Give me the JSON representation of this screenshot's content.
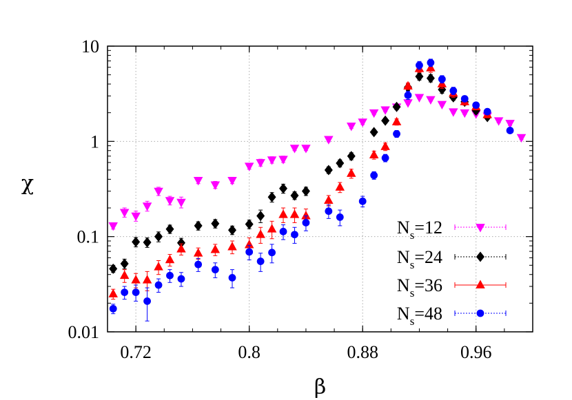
{
  "chart_data": {
    "type": "scatter",
    "xlabel": "β",
    "ylabel": "χ",
    "xscale": "linear",
    "yscale": "log",
    "xlim": [
      0.7,
      1.0
    ],
    "ylim": [
      0.01,
      10
    ],
    "grid": true,
    "grid_style": "dotted",
    "legend_position": "bottom-right",
    "x_ticks": [
      0.72,
      0.8,
      0.88,
      0.96
    ],
    "x_tick_labels": [
      "0.72",
      "0.8",
      "0.88",
      "0.96"
    ],
    "y_ticks": [
      0.01,
      0.1,
      1,
      10
    ],
    "y_tick_labels": [
      "0.01",
      "0.1",
      "1",
      "10"
    ],
    "series": [
      {
        "name": "N_s=12",
        "legend_main": "N",
        "legend_sub": "s",
        "legend_rest": "=12",
        "color": "#ff00ff",
        "marker": "triangle-down",
        "points": [
          {
            "x": 0.704,
            "y": 0.13,
            "err": 0.01
          },
          {
            "x": 0.712,
            "y": 0.18,
            "err": 0.02
          },
          {
            "x": 0.72,
            "y": 0.165,
            "err": 0.02
          },
          {
            "x": 0.728,
            "y": 0.21,
            "err": 0.025
          },
          {
            "x": 0.736,
            "y": 0.3,
            "err": 0.03
          },
          {
            "x": 0.744,
            "y": 0.24,
            "err": 0.025
          },
          {
            "x": 0.752,
            "y": 0.23,
            "err": 0.03
          },
          {
            "x": 0.764,
            "y": 0.39,
            "err": 0.03
          },
          {
            "x": 0.776,
            "y": 0.35,
            "err": 0.03
          },
          {
            "x": 0.788,
            "y": 0.39,
            "err": 0.03
          },
          {
            "x": 0.8,
            "y": 0.55,
            "err": 0.04
          },
          {
            "x": 0.808,
            "y": 0.6,
            "err": 0.05
          },
          {
            "x": 0.816,
            "y": 0.64,
            "err": 0.05
          },
          {
            "x": 0.824,
            "y": 0.65,
            "err": 0.05
          },
          {
            "x": 0.832,
            "y": 0.85,
            "err": 0.05
          },
          {
            "x": 0.84,
            "y": 0.85,
            "err": 0.05
          },
          {
            "x": 0.856,
            "y": 1.05,
            "err": 0.06
          },
          {
            "x": 0.872,
            "y": 1.45,
            "err": 0.08
          },
          {
            "x": 0.88,
            "y": 1.6,
            "err": 0.1
          },
          {
            "x": 0.888,
            "y": 2.0,
            "err": 0.1
          },
          {
            "x": 0.896,
            "y": 2.15,
            "err": 0.1
          },
          {
            "x": 0.904,
            "y": 2.3,
            "err": 0.1
          },
          {
            "x": 0.912,
            "y": 2.55,
            "err": 0.1
          },
          {
            "x": 0.92,
            "y": 2.9,
            "err": 0.1
          },
          {
            "x": 0.928,
            "y": 2.75,
            "err": 0.1
          },
          {
            "x": 0.936,
            "y": 2.45,
            "err": 0.1
          },
          {
            "x": 0.944,
            "y": 2.05,
            "err": 0.08
          },
          {
            "x": 0.952,
            "y": 2.0,
            "err": 0.08
          },
          {
            "x": 0.96,
            "y": 1.95,
            "err": 0.08
          },
          {
            "x": 0.968,
            "y": 1.85,
            "err": 0.08
          },
          {
            "x": 0.976,
            "y": 1.65,
            "err": 0.08
          },
          {
            "x": 0.984,
            "y": 1.55,
            "err": 0.08
          },
          {
            "x": 0.992,
            "y": 1.1,
            "err": 0.06
          }
        ]
      },
      {
        "name": "N_s=24",
        "legend_main": "N",
        "legend_sub": "s",
        "legend_rest": "=24",
        "color": "#000000",
        "marker": "diamond",
        "points": [
          {
            "x": 0.704,
            "y": 0.046,
            "err": 0.004
          },
          {
            "x": 0.712,
            "y": 0.052,
            "err": 0.006
          },
          {
            "x": 0.72,
            "y": 0.088,
            "err": 0.01
          },
          {
            "x": 0.728,
            "y": 0.087,
            "err": 0.01
          },
          {
            "x": 0.736,
            "y": 0.1,
            "err": 0.012
          },
          {
            "x": 0.744,
            "y": 0.12,
            "err": 0.012
          },
          {
            "x": 0.752,
            "y": 0.086,
            "err": 0.01
          },
          {
            "x": 0.764,
            "y": 0.13,
            "err": 0.013
          },
          {
            "x": 0.776,
            "y": 0.137,
            "err": 0.014
          },
          {
            "x": 0.788,
            "y": 0.117,
            "err": 0.012
          },
          {
            "x": 0.8,
            "y": 0.135,
            "err": 0.014
          },
          {
            "x": 0.808,
            "y": 0.165,
            "err": 0.025
          },
          {
            "x": 0.816,
            "y": 0.26,
            "err": 0.03
          },
          {
            "x": 0.824,
            "y": 0.32,
            "err": 0.035
          },
          {
            "x": 0.832,
            "y": 0.27,
            "err": 0.025
          },
          {
            "x": 0.84,
            "y": 0.3,
            "err": 0.03
          },
          {
            "x": 0.856,
            "y": 0.5,
            "err": 0.04
          },
          {
            "x": 0.864,
            "y": 0.59,
            "err": 0.05
          },
          {
            "x": 0.872,
            "y": 0.7,
            "err": 0.06
          },
          {
            "x": 0.888,
            "y": 1.25,
            "err": 0.08
          },
          {
            "x": 0.896,
            "y": 1.65,
            "err": 0.1
          },
          {
            "x": 0.904,
            "y": 2.3,
            "err": 0.15
          },
          {
            "x": 0.912,
            "y": 3.7,
            "err": 0.3
          },
          {
            "x": 0.92,
            "y": 4.8,
            "err": 0.4
          },
          {
            "x": 0.928,
            "y": 4.6,
            "err": 0.4
          },
          {
            "x": 0.936,
            "y": 3.5,
            "err": 0.3
          },
          {
            "x": 0.944,
            "y": 2.9,
            "err": 0.2
          },
          {
            "x": 0.952,
            "y": 2.6,
            "err": 0.15
          },
          {
            "x": 0.96,
            "y": 2.1,
            "err": 0.15
          },
          {
            "x": 0.968,
            "y": 1.8,
            "err": 0.1
          }
        ]
      },
      {
        "name": "N_s=36",
        "legend_main": "N",
        "legend_sub": "s",
        "legend_rest": "=36",
        "color": "#ff0000",
        "marker": "triangle-up",
        "points": [
          {
            "x": 0.704,
            "y": 0.025,
            "err": 0.003
          },
          {
            "x": 0.712,
            "y": 0.039,
            "err": 0.006
          },
          {
            "x": 0.72,
            "y": 0.035,
            "err": 0.006
          },
          {
            "x": 0.728,
            "y": 0.035,
            "err": 0.008
          },
          {
            "x": 0.736,
            "y": 0.048,
            "err": 0.008
          },
          {
            "x": 0.744,
            "y": 0.057,
            "err": 0.008
          },
          {
            "x": 0.752,
            "y": 0.074,
            "err": 0.01
          },
          {
            "x": 0.764,
            "y": 0.067,
            "err": 0.009
          },
          {
            "x": 0.776,
            "y": 0.073,
            "err": 0.01
          },
          {
            "x": 0.788,
            "y": 0.078,
            "err": 0.012
          },
          {
            "x": 0.8,
            "y": 0.082,
            "err": 0.015
          },
          {
            "x": 0.808,
            "y": 0.105,
            "err": 0.02
          },
          {
            "x": 0.816,
            "y": 0.12,
            "err": 0.025
          },
          {
            "x": 0.824,
            "y": 0.17,
            "err": 0.03
          },
          {
            "x": 0.832,
            "y": 0.17,
            "err": 0.03
          },
          {
            "x": 0.84,
            "y": 0.165,
            "err": 0.03
          },
          {
            "x": 0.856,
            "y": 0.24,
            "err": 0.03
          },
          {
            "x": 0.864,
            "y": 0.33,
            "err": 0.04
          },
          {
            "x": 0.872,
            "y": 0.46,
            "err": 0.05
          },
          {
            "x": 0.888,
            "y": 0.72,
            "err": 0.07
          },
          {
            "x": 0.896,
            "y": 0.88,
            "err": 0.08
          },
          {
            "x": 0.904,
            "y": 1.6,
            "err": 0.12
          },
          {
            "x": 0.912,
            "y": 3.8,
            "err": 0.3
          },
          {
            "x": 0.92,
            "y": 5.8,
            "err": 0.5
          },
          {
            "x": 0.928,
            "y": 5.9,
            "err": 0.6
          },
          {
            "x": 0.936,
            "y": 4.0,
            "err": 0.4
          },
          {
            "x": 0.944,
            "y": 3.2,
            "err": 0.3
          },
          {
            "x": 0.952,
            "y": 2.6,
            "err": 0.2
          },
          {
            "x": 0.96,
            "y": 2.3,
            "err": 0.15
          },
          {
            "x": 0.968,
            "y": 1.9,
            "err": 0.12
          }
        ]
      },
      {
        "name": "N_s=48",
        "legend_main": "N",
        "legend_sub": "s",
        "legend_rest": "=48",
        "color": "#0000ff",
        "marker": "circle",
        "points": [
          {
            "x": 0.704,
            "y": 0.0175,
            "err": 0.002
          },
          {
            "x": 0.712,
            "y": 0.026,
            "err": 0.004
          },
          {
            "x": 0.72,
            "y": 0.026,
            "err": 0.005
          },
          {
            "x": 0.728,
            "y": 0.021,
            "err": 0.008
          },
          {
            "x": 0.736,
            "y": 0.031,
            "err": 0.005
          },
          {
            "x": 0.744,
            "y": 0.039,
            "err": 0.006
          },
          {
            "x": 0.752,
            "y": 0.036,
            "err": 0.006
          },
          {
            "x": 0.764,
            "y": 0.051,
            "err": 0.008
          },
          {
            "x": 0.776,
            "y": 0.045,
            "err": 0.008
          },
          {
            "x": 0.788,
            "y": 0.037,
            "err": 0.008
          },
          {
            "x": 0.8,
            "y": 0.069,
            "err": 0.012
          },
          {
            "x": 0.808,
            "y": 0.055,
            "err": 0.012
          },
          {
            "x": 0.816,
            "y": 0.068,
            "err": 0.015
          },
          {
            "x": 0.824,
            "y": 0.113,
            "err": 0.02
          },
          {
            "x": 0.832,
            "y": 0.105,
            "err": 0.02
          },
          {
            "x": 0.84,
            "y": 0.14,
            "err": 0.025
          },
          {
            "x": 0.856,
            "y": 0.185,
            "err": 0.03
          },
          {
            "x": 0.864,
            "y": 0.16,
            "err": 0.03
          },
          {
            "x": 0.88,
            "y": 0.235,
            "err": 0.03
          },
          {
            "x": 0.888,
            "y": 0.44,
            "err": 0.04
          },
          {
            "x": 0.896,
            "y": 0.67,
            "err": 0.06
          },
          {
            "x": 0.904,
            "y": 1.2,
            "err": 0.1
          },
          {
            "x": 0.912,
            "y": 3.05,
            "err": 0.3
          },
          {
            "x": 0.92,
            "y": 6.3,
            "err": 0.6
          },
          {
            "x": 0.928,
            "y": 6.7,
            "err": 0.6
          },
          {
            "x": 0.936,
            "y": 4.5,
            "err": 0.4
          },
          {
            "x": 0.944,
            "y": 3.4,
            "err": 0.3
          },
          {
            "x": 0.952,
            "y": 2.8,
            "err": 0.2
          },
          {
            "x": 0.96,
            "y": 2.4,
            "err": 0.15
          },
          {
            "x": 0.968,
            "y": 2.05,
            "err": 0.12
          },
          {
            "x": 0.984,
            "y": 1.3,
            "err": 0.08
          }
        ]
      }
    ]
  }
}
